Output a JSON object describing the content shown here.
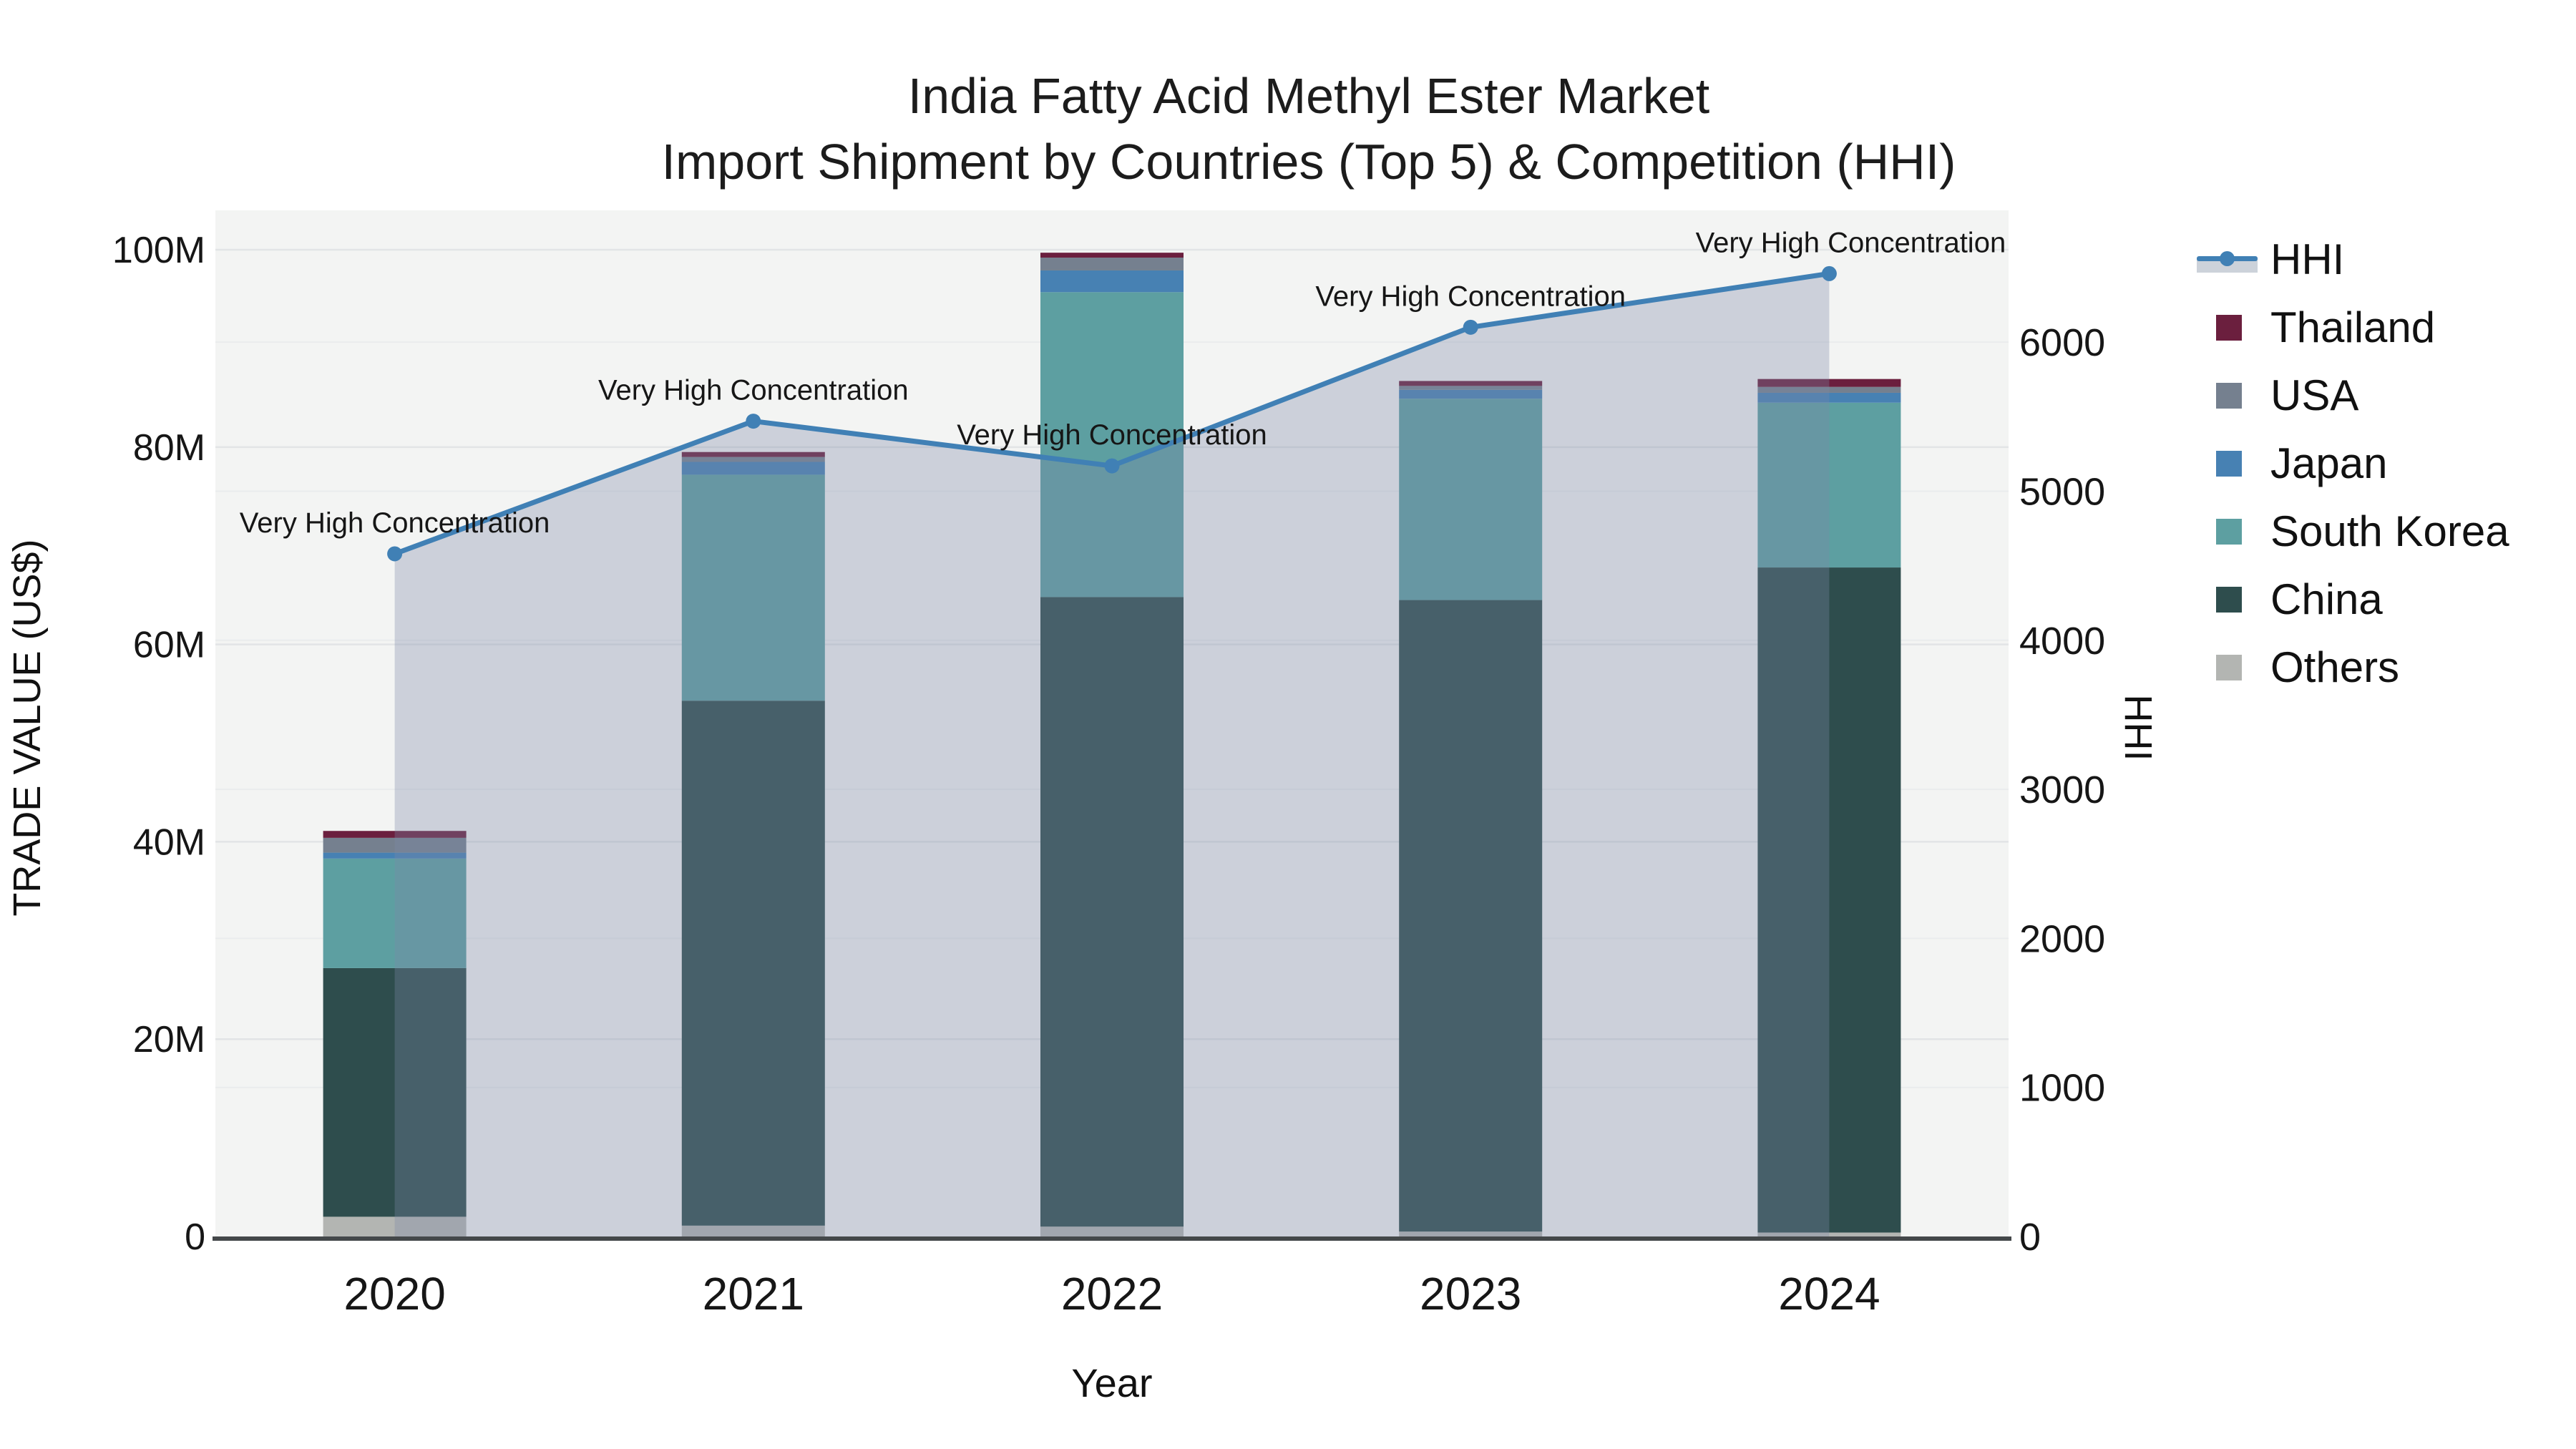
{
  "title": {
    "line1": "India Fatty Acid Methyl Ester Market",
    "line2": "Import Shipment by Countries (Top 5) & Competition (HHI)"
  },
  "axes": {
    "x": {
      "title": "Year",
      "ticks": [
        "2020",
        "2021",
        "2022",
        "2023",
        "2024"
      ]
    },
    "left": {
      "title": "TRADE VALUE (US$)",
      "ticks": [
        "0",
        "20M",
        "40M",
        "60M",
        "80M",
        "100M"
      ],
      "tick_values": [
        0,
        20,
        40,
        60,
        80,
        100
      ],
      "max": 103.7
    },
    "right": {
      "title": "HHI",
      "ticks": [
        "0",
        "1000",
        "2000",
        "3000",
        "4000",
        "5000",
        "6000"
      ],
      "tick_values": [
        0,
        1000,
        2000,
        3000,
        4000,
        5000,
        6000
      ],
      "max": 6865
    }
  },
  "legend": {
    "items": [
      {
        "id": "hhi",
        "label": "HHI",
        "marker": "line",
        "color": "#4080b5"
      },
      {
        "id": "thailand",
        "label": "Thailand",
        "marker": "square",
        "color": "#6b1f3e"
      },
      {
        "id": "usa",
        "label": "USA",
        "marker": "square",
        "color": "#75808f"
      },
      {
        "id": "japan",
        "label": "Japan",
        "marker": "square",
        "color": "#4781b3"
      },
      {
        "id": "south-korea",
        "label": "South Korea",
        "marker": "square",
        "color": "#5d9fa1"
      },
      {
        "id": "china",
        "label": "China",
        "marker": "square",
        "color": "#2e4d4d"
      },
      {
        "id": "others",
        "label": "Others",
        "marker": "square",
        "color": "#b3b5b2"
      }
    ]
  },
  "chart_data": {
    "type": "bar",
    "subtype": "stacked-bars-with-line",
    "title": "India Fatty Acid Methyl Ester Market — Import Shipment by Countries (Top 5) & Competition (HHI)",
    "categories": [
      "2020",
      "2021",
      "2022",
      "2023",
      "2024"
    ],
    "bar_unit": "M US$",
    "xlabel": "Year",
    "ylabel_left": "TRADE VALUE (US$)",
    "ylabel_right": "HHI",
    "ylim_left": [
      0,
      103.7
    ],
    "ylim_right": [
      0,
      6865
    ],
    "grid": true,
    "legend_position": "right",
    "series": [
      {
        "id": "others",
        "name": "Others",
        "stack_order": 1,
        "color": "#b3b5b2",
        "values": [
          2.0,
          1.1,
          1.0,
          0.5,
          0.4
        ]
      },
      {
        "id": "china",
        "name": "China",
        "stack_order": 2,
        "color": "#2e4d4d",
        "values": [
          25.2,
          53.2,
          63.8,
          64.0,
          67.4
        ]
      },
      {
        "id": "south-korea",
        "name": "South Korea",
        "stack_order": 3,
        "color": "#5d9fa1",
        "values": [
          11.1,
          22.9,
          30.9,
          20.4,
          16.7
        ]
      },
      {
        "id": "japan",
        "name": "Japan",
        "stack_order": 4,
        "color": "#4781b3",
        "values": [
          0.6,
          1.3,
          2.2,
          0.9,
          1.0
        ]
      },
      {
        "id": "usa",
        "name": "USA",
        "stack_order": 5,
        "color": "#75808f",
        "values": [
          1.5,
          0.5,
          1.3,
          0.4,
          0.6
        ]
      },
      {
        "id": "thailand",
        "name": "Thailand",
        "stack_order": 6,
        "color": "#6b1f3e",
        "values": [
          0.7,
          0.5,
          0.5,
          0.5,
          0.8
        ]
      }
    ],
    "bar_totals": [
      41.1,
      79.5,
      99.7,
      86.7,
      86.9
    ],
    "line_series": {
      "id": "hhi",
      "name": "HHI",
      "axis": "right",
      "color": "#4080b5",
      "fill_color": "rgba(123,138,168,0.33)",
      "values": [
        4580,
        5470,
        5170,
        6100,
        6460
      ]
    },
    "annotations": [
      {
        "x": "2020",
        "text": "Very High Concentration"
      },
      {
        "x": "2021",
        "text": "Very High Concentration"
      },
      {
        "x": "2022",
        "text": "Very High Concentration"
      },
      {
        "x": "2023",
        "text": "Very High Concentration"
      },
      {
        "x": "2024",
        "text": "Very High Concentration"
      }
    ]
  },
  "colors": {
    "plot_bg": "#f3f4f3",
    "grid_left": "#e2e4e6",
    "grid_right": "#eaeced",
    "axis_line": "#44484a",
    "text": "#161616"
  }
}
